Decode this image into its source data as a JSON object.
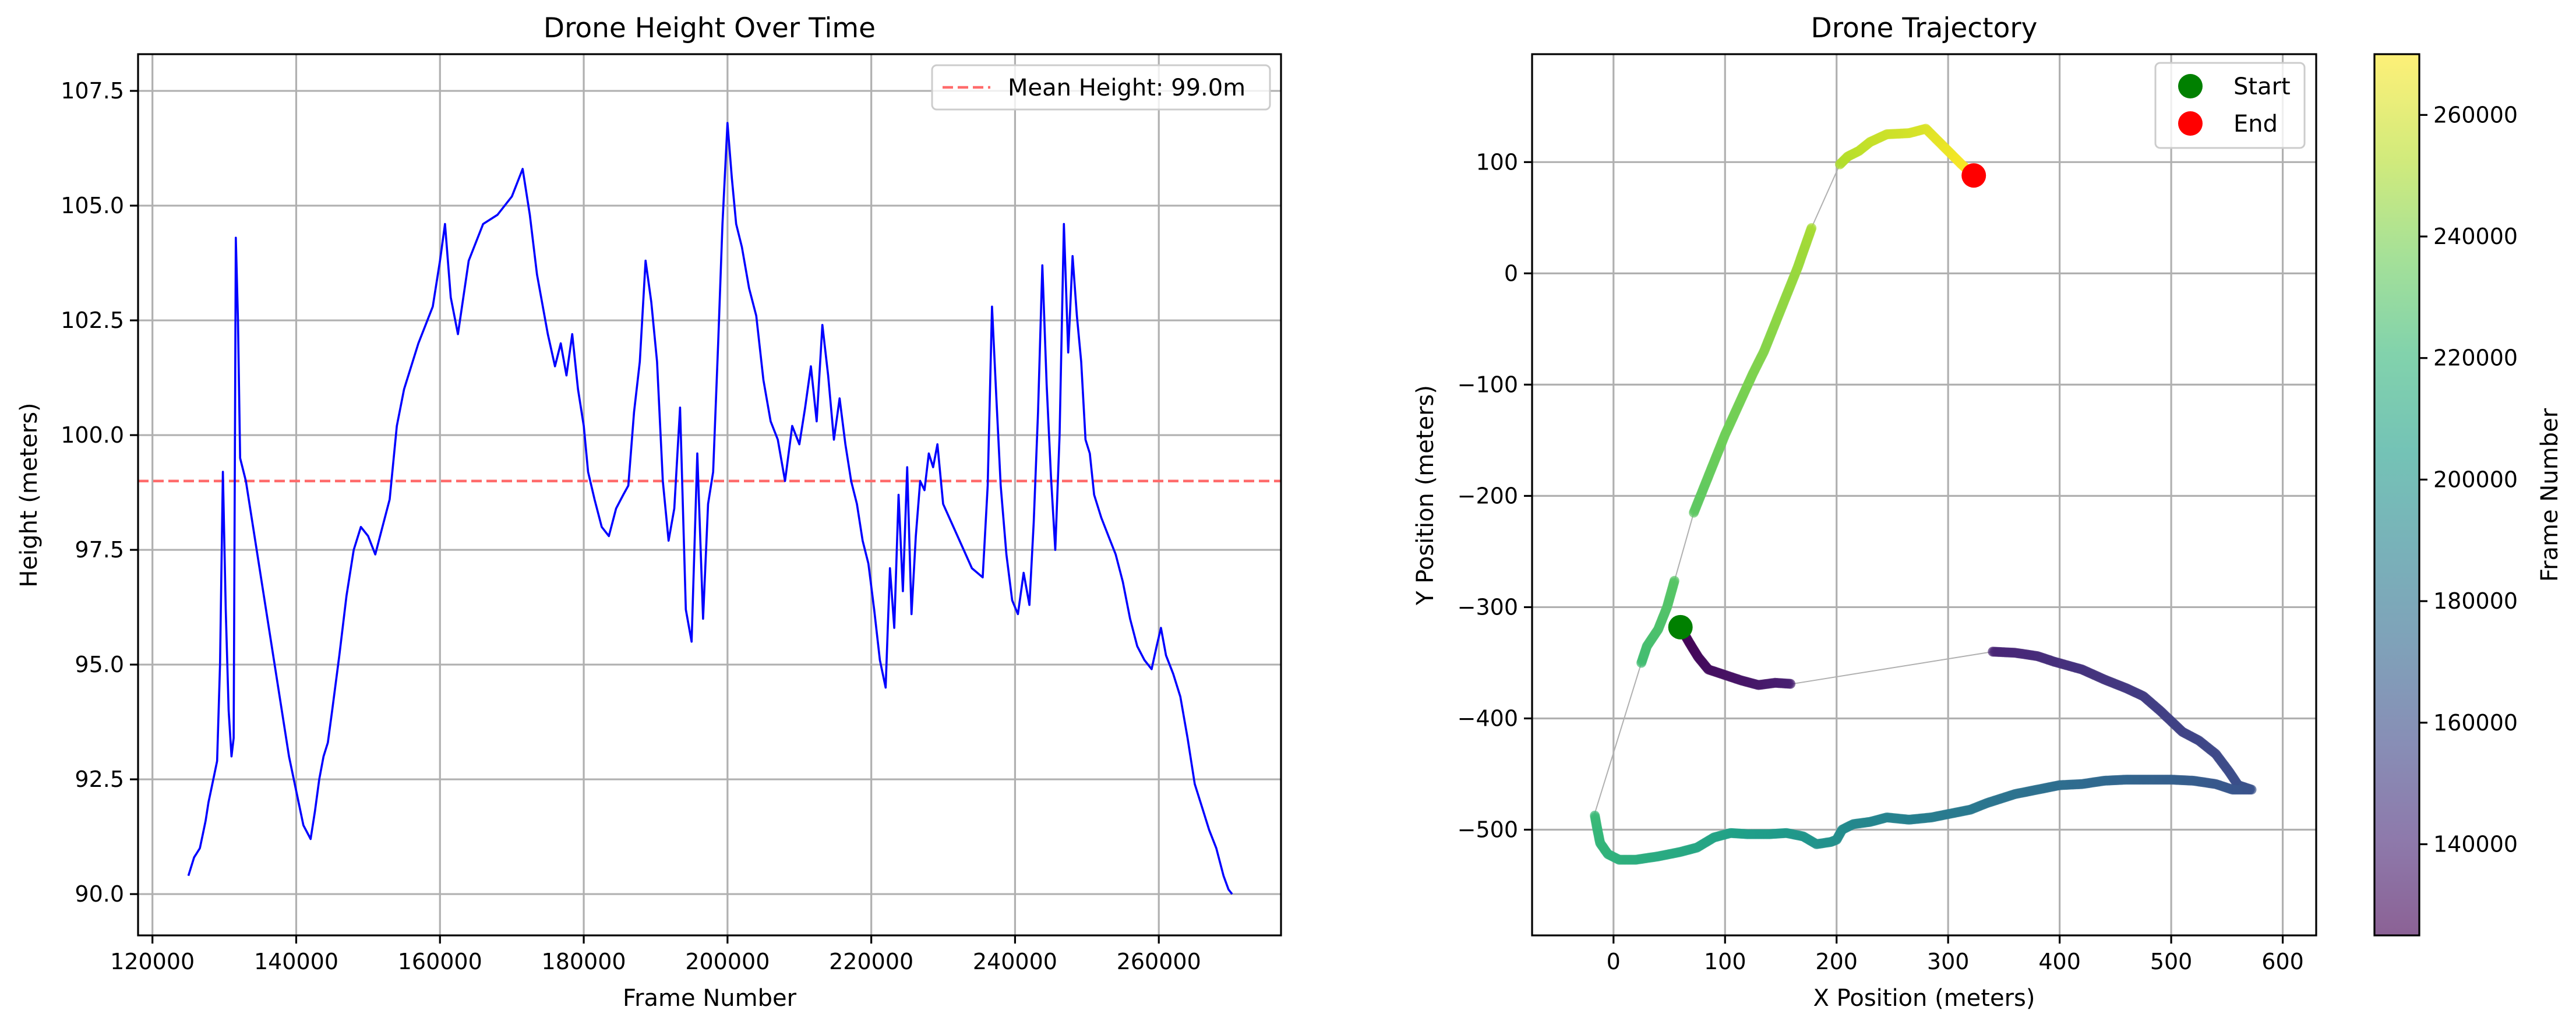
{
  "chart_data": [
    {
      "type": "line",
      "title": "Drone Height Over Time",
      "xlabel": "Frame Number",
      "ylabel": "Height (meters)",
      "xlim": [
        118000,
        277000
      ],
      "ylim": [
        89.1,
        108.3
      ],
      "xticks": [
        120000,
        140000,
        160000,
        180000,
        200000,
        220000,
        240000,
        260000
      ],
      "xtick_labels": [
        "120000",
        "140000",
        "160000",
        "180000",
        "200000",
        "220000",
        "240000",
        "260000"
      ],
      "yticks": [
        90.0,
        92.5,
        95.0,
        97.5,
        100.0,
        102.5,
        105.0,
        107.5
      ],
      "ytick_labels": [
        "90.0",
        "92.5",
        "95.0",
        "97.5",
        "100.0",
        "102.5",
        "105.0",
        "107.5"
      ],
      "grid": true,
      "legend_position": "top-right",
      "series_color": "#0000ff",
      "mean_line": {
        "label": "Mean Height: 99.0m",
        "value": 99.0,
        "color": "#ff6b6b",
        "style": "dashed"
      },
      "x": [
        125000,
        125400,
        125800,
        126200,
        126600,
        127000,
        127400,
        127800,
        128200,
        128600,
        129000,
        129400,
        129800,
        130200,
        130600,
        131000,
        131300,
        131600,
        131900,
        132200,
        133000,
        136000,
        139000,
        141000,
        142000,
        142600,
        143200,
        143800,
        144400,
        145000,
        146000,
        147000,
        148000,
        149000,
        150000,
        151000,
        152000,
        153000,
        154000,
        155000,
        156000,
        157000,
        158000,
        159000,
        160000,
        160700,
        161500,
        162500,
        164000,
        166000,
        168000,
        170000,
        171500,
        172500,
        173500,
        175000,
        176000,
        176800,
        177600,
        178400,
        179200,
        180000,
        180600,
        181500,
        182500,
        183500,
        184500,
        185500,
        186200,
        187000,
        187800,
        188600,
        189400,
        190200,
        191000,
        191800,
        192600,
        193400,
        194200,
        195000,
        195800,
        196600,
        197300,
        198000,
        198700,
        199300,
        200000,
        200600,
        201200,
        202000,
        203000,
        204000,
        205000,
        206000,
        207000,
        208000,
        209000,
        210000,
        210800,
        211600,
        212400,
        213200,
        214000,
        214800,
        215600,
        216400,
        217200,
        218000,
        218800,
        219600,
        220400,
        221200,
        222000,
        222600,
        223200,
        223800,
        224400,
        225000,
        225600,
        226200,
        226800,
        227400,
        228000,
        228600,
        229200,
        230000,
        232000,
        234000,
        235500,
        236200,
        236800,
        237400,
        238000,
        238800,
        239600,
        240400,
        241200,
        242000,
        242600,
        243200,
        243800,
        244400,
        245000,
        245600,
        246200,
        246800,
        247400,
        248000,
        248600,
        249200,
        249800,
        250400,
        251000,
        252000,
        253000,
        254000,
        255000,
        256000,
        257000,
        258000,
        259000,
        259700,
        260300,
        261000,
        262000,
        263000,
        264000,
        265000,
        266000,
        267000,
        268000,
        269000,
        269700,
        270200
      ],
      "y": [
        90.4,
        90.6,
        90.8,
        90.9,
        91.0,
        91.3,
        91.6,
        92.0,
        92.3,
        92.6,
        92.9,
        95.0,
        99.2,
        96.2,
        94.0,
        93.0,
        93.4,
        104.3,
        102.5,
        99.5,
        99.0,
        96.0,
        93.0,
        91.5,
        91.2,
        91.8,
        92.5,
        93.0,
        93.3,
        94.0,
        95.2,
        96.5,
        97.5,
        98.0,
        97.8,
        97.4,
        98.0,
        98.6,
        100.2,
        101.0,
        101.5,
        102.0,
        102.4,
        102.8,
        103.8,
        104.6,
        103.0,
        102.2,
        103.8,
        104.6,
        104.8,
        105.2,
        105.8,
        104.8,
        103.5,
        102.2,
        101.5,
        102.0,
        101.3,
        102.2,
        101.0,
        100.2,
        99.2,
        98.6,
        98.0,
        97.8,
        98.4,
        98.7,
        98.9,
        100.5,
        101.6,
        103.8,
        102.9,
        101.6,
        99.0,
        97.7,
        98.4,
        100.6,
        96.2,
        95.5,
        99.6,
        96.0,
        98.5,
        99.2,
        102.0,
        104.6,
        106.8,
        105.6,
        104.6,
        104.1,
        103.2,
        102.6,
        101.2,
        100.3,
        99.9,
        99.0,
        100.2,
        99.8,
        100.6,
        101.5,
        100.3,
        102.4,
        101.3,
        99.9,
        100.8,
        99.8,
        99.0,
        98.5,
        97.7,
        97.2,
        96.2,
        95.1,
        94.5,
        97.1,
        95.8,
        98.7,
        96.6,
        99.3,
        96.1,
        97.8,
        99.0,
        98.8,
        99.6,
        99.3,
        99.8,
        98.5,
        97.8,
        97.1,
        96.9,
        98.9,
        102.8,
        100.8,
        98.9,
        97.4,
        96.4,
        96.1,
        97.0,
        96.3,
        98.1,
        100.5,
        103.7,
        101.1,
        99.1,
        97.5,
        100.0,
        104.6,
        101.8,
        103.9,
        102.6,
        101.6,
        99.9,
        99.6,
        98.7,
        98.2,
        97.8,
        97.4,
        96.8,
        96.0,
        95.4,
        95.1,
        94.9,
        95.4,
        95.8,
        95.2,
        94.8,
        94.3,
        93.4,
        92.4,
        91.9,
        91.4,
        91.0,
        90.4,
        90.1,
        90.0
      ]
    },
    {
      "type": "scatter",
      "title": "Drone Trajectory",
      "xlabel": "X Position (meters)",
      "ylabel": "Y Position (meters)",
      "xlim": [
        -73,
        630
      ],
      "ylim": [
        -595,
        197
      ],
      "xticks": [
        0,
        100,
        200,
        300,
        400,
        500,
        600
      ],
      "xtick_labels": [
        "0",
        "100",
        "200",
        "300",
        "400",
        "500",
        "600"
      ],
      "yticks": [
        -500,
        -400,
        -300,
        -200,
        -100,
        0,
        100
      ],
      "ytick_labels": [
        "−500",
        "−400",
        "−300",
        "−200",
        "−100",
        "0",
        "100"
      ],
      "grid": true,
      "legend_position": "top-right",
      "legend": [
        {
          "label": "Start",
          "color": "#008000"
        },
        {
          "label": "End",
          "color": "#ff0000"
        }
      ],
      "start_point": {
        "x": 60,
        "y": -318
      },
      "end_point": {
        "x": 323,
        "y": 88
      },
      "colorbar": {
        "label": "Frame Number",
        "range": [
          125000,
          270000
        ],
        "ticks": [
          140000,
          160000,
          180000,
          200000,
          220000,
          240000,
          260000
        ],
        "tick_labels": [
          "140000",
          "160000",
          "180000",
          "200000",
          "220000",
          "240000",
          "260000"
        ],
        "colors": [
          "#440154",
          "#482878",
          "#3e4989",
          "#31688e",
          "#26828e",
          "#1f9e89",
          "#35b779",
          "#6ece58",
          "#b5de2b",
          "#fde725"
        ]
      },
      "trajectory": [
        [
          60,
          -318
        ],
        [
          68,
          -332
        ],
        [
          76,
          -345
        ],
        [
          85,
          -356
        ],
        [
          100,
          -361
        ],
        [
          115,
          -366
        ],
        [
          130,
          -370
        ],
        [
          145,
          -368
        ],
        [
          160,
          -369
        ],
        [
          340,
          -340
        ],
        [
          360,
          -341
        ],
        [
          380,
          -344
        ],
        [
          395,
          -349
        ],
        [
          420,
          -356
        ],
        [
          440,
          -365
        ],
        [
          460,
          -373
        ],
        [
          475,
          -380
        ],
        [
          490,
          -393
        ],
        [
          510,
          -412
        ],
        [
          525,
          -420
        ],
        [
          540,
          -432
        ],
        [
          552,
          -448
        ],
        [
          560,
          -460
        ],
        [
          572,
          -464
        ],
        [
          555,
          -464
        ],
        [
          540,
          -459
        ],
        [
          520,
          -456
        ],
        [
          500,
          -455
        ],
        [
          480,
          -455
        ],
        [
          460,
          -455
        ],
        [
          440,
          -456
        ],
        [
          420,
          -459
        ],
        [
          400,
          -460
        ],
        [
          380,
          -464
        ],
        [
          360,
          -468
        ],
        [
          335,
          -476
        ],
        [
          320,
          -482
        ],
        [
          300,
          -486
        ],
        [
          285,
          -489
        ],
        [
          265,
          -491
        ],
        [
          245,
          -489
        ],
        [
          230,
          -493
        ],
        [
          215,
          -495
        ],
        [
          205,
          -500
        ],
        [
          200,
          -509
        ],
        [
          195,
          -511
        ],
        [
          182,
          -513
        ],
        [
          170,
          -506
        ],
        [
          155,
          -503
        ],
        [
          140,
          -504
        ],
        [
          120,
          -504
        ],
        [
          105,
          -503
        ],
        [
          90,
          -507
        ],
        [
          75,
          -516
        ],
        [
          60,
          -520
        ],
        [
          40,
          -524
        ],
        [
          20,
          -527
        ],
        [
          5,
          -527
        ],
        [
          -5,
          -522
        ],
        [
          -12,
          -512
        ],
        [
          -15,
          -497
        ],
        [
          -17,
          -486
        ],
        [
          25,
          -350
        ],
        [
          30,
          -335
        ],
        [
          40,
          -320
        ],
        [
          48,
          -300
        ],
        [
          55,
          -275
        ],
        [
          72,
          -215
        ],
        [
          82,
          -190
        ],
        [
          90,
          -170
        ],
        [
          100,
          -145
        ],
        [
          115,
          -112
        ],
        [
          125,
          -90
        ],
        [
          135,
          -70
        ],
        [
          145,
          -45
        ],
        [
          155,
          -20
        ],
        [
          165,
          5
        ],
        [
          172,
          25
        ],
        [
          178,
          42
        ],
        [
          203,
          98
        ],
        [
          210,
          105
        ],
        [
          220,
          110
        ],
        [
          230,
          118
        ],
        [
          245,
          125
        ],
        [
          265,
          126
        ],
        [
          280,
          130
        ],
        [
          285,
          125
        ],
        [
          295,
          115
        ],
        [
          305,
          105
        ],
        [
          312,
          98
        ],
        [
          323,
          88
        ]
      ]
    }
  ]
}
